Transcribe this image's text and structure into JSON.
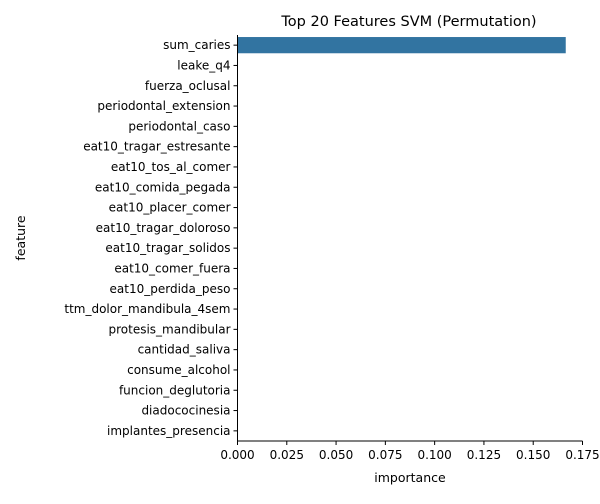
{
  "chart_data": {
    "type": "bar",
    "orientation": "horizontal",
    "title": "Top 20 Features SVM (Permutation)",
    "xlabel": "importance",
    "ylabel": "feature",
    "categories": [
      "sum_caries",
      "leake_q4",
      "fuerza_oclusal",
      "periodontal_extension",
      "periodontal_caso",
      "eat10_tragar_estresante",
      "eat10_tos_al_comer",
      "eat10_comida_pegada",
      "eat10_placer_comer",
      "eat10_tragar_doloroso",
      "eat10_tragar_solidos",
      "eat10_comer_fuera",
      "eat10_perdida_peso",
      "ttm_dolor_mandibula_4sem",
      "protesis_mandibular",
      "cantidad_saliva",
      "consume_alcohol",
      "funcion_deglutoria",
      "diadococinesia",
      "implantes_presencia"
    ],
    "values": [
      0.1665,
      0,
      0,
      0,
      0,
      0,
      0,
      0,
      0,
      0,
      0,
      0,
      0,
      0,
      0,
      0,
      0,
      0,
      0,
      0
    ],
    "xlim": [
      0,
      0.175
    ],
    "xticks": [
      "0.000",
      "0.025",
      "0.050",
      "0.075",
      "0.100",
      "0.125",
      "0.150",
      "0.175"
    ],
    "grid": false,
    "colors": {
      "bar": "#3274a1",
      "axis": "#000000"
    }
  }
}
